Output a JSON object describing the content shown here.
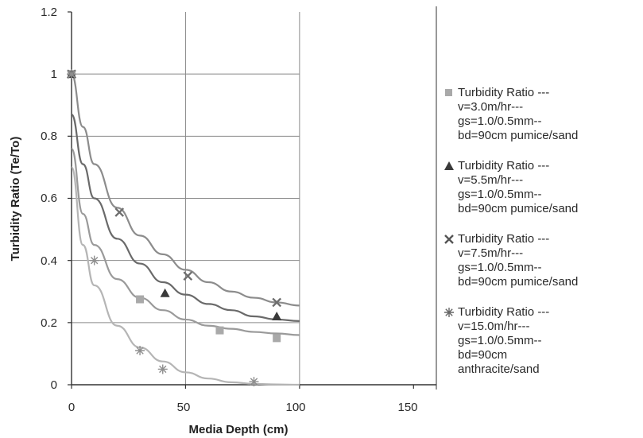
{
  "chart_data": {
    "type": "scatter",
    "xlabel": "Media Depth  (cm)",
    "ylabel": "Turbidity Ratio  (Te/To)",
    "xlim": [
      0,
      160
    ],
    "ylim": [
      0,
      1.2
    ],
    "x_ticks": [
      "0",
      "50",
      "100",
      "150"
    ],
    "y_ticks": [
      "0",
      "0.2",
      "0.4",
      "0.6",
      "0.8",
      "1",
      "1.2"
    ],
    "grid": true,
    "legend_position": "right",
    "series": [
      {
        "name": "Turbidity Ratio --- v=3.0m/hr--- gs=1.0/0.5mm-- bd=90cm pumice/sand",
        "marker": "square",
        "color": "#a9a9a9",
        "x": [
          0,
          30,
          65,
          90
        ],
        "y": [
          1,
          0.275,
          0.175,
          0.15
        ],
        "trend_x": [
          0,
          5,
          10,
          20,
          30,
          40,
          50,
          60,
          70,
          80,
          90,
          100
        ],
        "trend_y": [
          0.76,
          0.55,
          0.45,
          0.34,
          0.28,
          0.24,
          0.21,
          0.19,
          0.18,
          0.17,
          0.165,
          0.16
        ]
      },
      {
        "name": "Turbidity Ratio --- v=5.5m/hr--- gs=1.0/0.5mm-- bd=90cm pumice/sand",
        "marker": "triangle",
        "color": "#3a3a3a",
        "x": [
          0,
          41,
          90
        ],
        "y": [
          1,
          0.295,
          0.22
        ],
        "trend_x": [
          0,
          5,
          10,
          20,
          30,
          40,
          50,
          60,
          70,
          80,
          90,
          100
        ],
        "trend_y": [
          0.87,
          0.71,
          0.6,
          0.47,
          0.39,
          0.33,
          0.29,
          0.26,
          0.24,
          0.22,
          0.21,
          0.205
        ]
      },
      {
        "name": "Turbidity Ratio --- v=7.5m/hr--- gs=1.0/0.5mm-- bd=90cm pumice/sand",
        "marker": "x",
        "color": "#6e6e6e",
        "x": [
          0,
          21,
          51,
          90
        ],
        "y": [
          1,
          0.555,
          0.35,
          0.265
        ],
        "trend_x": [
          0,
          5,
          10,
          20,
          30,
          40,
          50,
          60,
          70,
          80,
          90,
          100
        ],
        "trend_y": [
          1,
          0.83,
          0.71,
          0.57,
          0.48,
          0.42,
          0.37,
          0.33,
          0.3,
          0.28,
          0.265,
          0.255
        ]
      },
      {
        "name": "Turbidity Ratio --- v=15.0m/hr--- gs=1.0/0.5mm-- bd=90cm anthracite/sand",
        "marker": "asterisk",
        "color": "#8f8f8f",
        "x": [
          0,
          10,
          30,
          40,
          80
        ],
        "y": [
          1,
          0.4,
          0.11,
          0.05,
          0.01
        ],
        "trend_x": [
          0,
          5,
          10,
          20,
          30,
          40,
          50,
          60,
          70,
          80,
          90,
          100
        ],
        "trend_y": [
          0.7,
          0.45,
          0.32,
          0.19,
          0.12,
          0.075,
          0.04,
          0.02,
          0.008,
          0.003,
          0.001,
          0.0
        ]
      }
    ]
  },
  "legend": {
    "items": [
      {
        "lines": [
          "Turbidity Ratio ---",
          "v=3.0m/hr---",
          "gs=1.0/0.5mm--",
          "bd=90cm pumice/sand"
        ]
      },
      {
        "lines": [
          "Turbidity Ratio ---",
          "v=5.5m/hr---",
          "gs=1.0/0.5mm--",
          "bd=90cm pumice/sand"
        ]
      },
      {
        "lines": [
          "Turbidity Ratio ---",
          "v=7.5m/hr---",
          "gs=1.0/0.5mm--",
          "bd=90cm pumice/sand"
        ]
      },
      {
        "lines": [
          "Turbidity Ratio ---",
          "v=15.0m/hr---",
          "gs=1.0/0.5mm--",
          "bd=90cm",
          "anthracite/sand"
        ]
      }
    ]
  }
}
